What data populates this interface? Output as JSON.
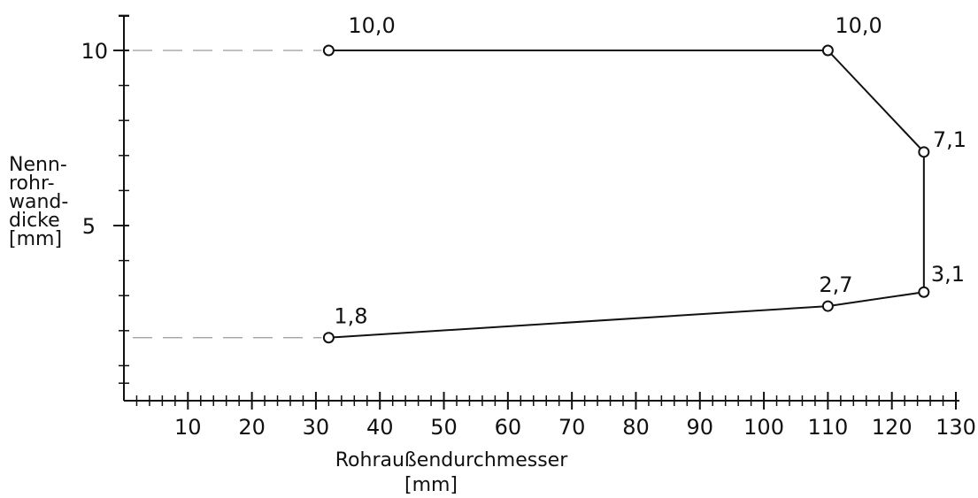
{
  "chart_data": {
    "type": "line",
    "title": "",
    "xlabel": "Rohraußendurchmesser",
    "xunit": "[mm]",
    "ylabel_lines": [
      "Nenn-",
      "rohr-",
      "wand-",
      "dicke",
      "[mm]"
    ],
    "xlim": [
      0,
      130
    ],
    "ylim": [
      0,
      10
    ],
    "x_ticks": [
      10,
      20,
      30,
      40,
      50,
      60,
      70,
      80,
      90,
      100,
      110,
      120,
      130
    ],
    "y_ticks": [
      5,
      10
    ],
    "minor_step_x": 2,
    "minor_step_y": 1,
    "grid": false,
    "series": [
      {
        "points": [
          {
            "x": 32,
            "y": 10.0,
            "label": "10,0"
          },
          {
            "x": 110,
            "y": 10.0,
            "label": "10,0"
          },
          {
            "x": 125,
            "y": 7.1,
            "label": "7,1"
          },
          {
            "x": 125,
            "y": 3.1,
            "label": "3,1"
          },
          {
            "x": 110,
            "y": 2.7,
            "label": "2,7"
          },
          {
            "x": 32,
            "y": 1.8,
            "label": "1,8"
          }
        ],
        "closed": false
      }
    ],
    "reference_lines": [
      {
        "y": 10.0,
        "x_from": 0,
        "x_to": 32,
        "style": "dashed"
      },
      {
        "y": 1.8,
        "x_from": 0,
        "x_to": 32,
        "style": "dashed"
      }
    ],
    "colors": {
      "line": "#111111",
      "axis": "#111111",
      "dashed": "#9a9a9a"
    }
  }
}
